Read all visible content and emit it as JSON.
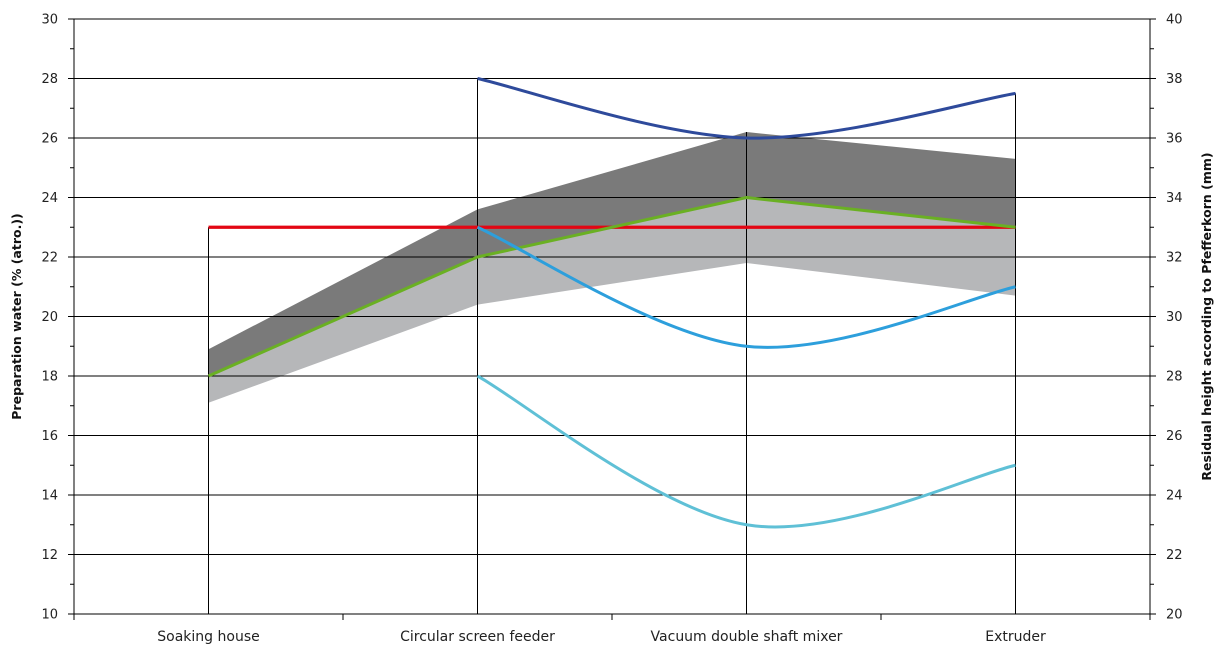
{
  "chart_data": {
    "type": "line",
    "categories": [
      "Soaking house",
      "Circular screen feeder",
      "Vacuum double shaft mixer",
      "Extruder"
    ],
    "ylabel": "Preparation water (% (atro.))",
    "y2label": "Residual height according to Pfefferkorn (mm)",
    "ylim": [
      10,
      30
    ],
    "y2lim": [
      20,
      40
    ],
    "yticks": [
      "10",
      "12",
      "14",
      "16",
      "18",
      "20",
      "22",
      "24",
      "26",
      "28",
      "30"
    ],
    "y2ticks": [
      "20",
      "22",
      "24",
      "26",
      "28",
      "30",
      "32",
      "34",
      "36",
      "38",
      "40"
    ],
    "grid": "horizontal major lines",
    "bands": [
      {
        "name": "",
        "color": "#7a7a7a",
        "lower": [
          18,
          22,
          24,
          23
        ],
        "upper": [
          18.9,
          23.6,
          26.2,
          25.3
        ]
      },
      {
        "name": "",
        "color": "#b6b7b9",
        "lower": [
          17.1,
          20.4,
          21.8,
          20.7
        ],
        "upper": [
          18,
          22,
          24,
          23
        ]
      }
    ],
    "series": [
      {
        "name": "",
        "axis": "left",
        "color": "#e30613",
        "values": [
          23,
          23,
          23,
          23
        ]
      },
      {
        "name": "",
        "axis": "left",
        "color": "#6ab023",
        "values": [
          18,
          22,
          24,
          23
        ]
      },
      {
        "name": "",
        "axis": "right",
        "color": "#2e4a9b",
        "values": [
          null,
          38,
          36,
          37.5
        ]
      },
      {
        "name": "",
        "axis": "right",
        "color": "#2d9fdc",
        "values": [
          null,
          33,
          29,
          31
        ]
      },
      {
        "name": "",
        "axis": "right",
        "color": "#5fc0d6",
        "values": [
          null,
          28,
          23,
          25
        ]
      }
    ]
  }
}
